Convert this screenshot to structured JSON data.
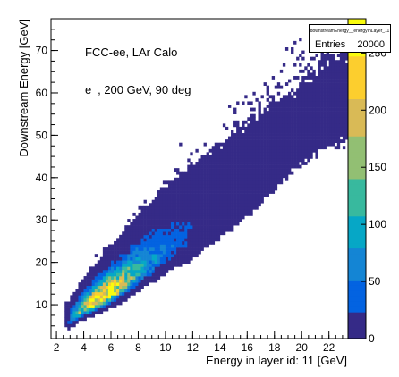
{
  "chart_data": {
    "type": "heatmap",
    "title": "",
    "xlabel": "Energy in layer id: 11 [GeV]",
    "ylabel": "Downstream Energy [GeV]",
    "xlim": [
      1.6,
      23.4
    ],
    "ylim": [
      2,
      77.5
    ],
    "x_ticks": [
      2,
      4,
      6,
      8,
      10,
      12,
      14,
      16,
      18,
      20,
      22
    ],
    "y_ticks": [
      10,
      20,
      30,
      40,
      50,
      60,
      70
    ],
    "color_scale": {
      "min": 0,
      "max": 280,
      "ticks": [
        0,
        50,
        100,
        150,
        200,
        250
      ],
      "palette": [
        "#352a87",
        "#0363e1",
        "#1485d4",
        "#06a7c6",
        "#38b99e",
        "#92bf73",
        "#d9ba56",
        "#fcce2e",
        "#f9fb0e"
      ]
    },
    "distribution_ridge": [
      {
        "x": 2.8,
        "y": 5.5,
        "counts": 25
      },
      {
        "x": 3.5,
        "y": 7.5,
        "counts": 120
      },
      {
        "x": 4.5,
        "y": 9.5,
        "counts": 240
      },
      {
        "x": 5.5,
        "y": 11.5,
        "counts": 275
      },
      {
        "x": 6.5,
        "y": 13.5,
        "counts": 200
      },
      {
        "x": 7.5,
        "y": 16,
        "counts": 130
      },
      {
        "x": 8.5,
        "y": 18.5,
        "counts": 80
      },
      {
        "x": 10,
        "y": 22,
        "counts": 40
      },
      {
        "x": 12,
        "y": 26,
        "counts": 15
      },
      {
        "x": 14,
        "y": 31,
        "counts": 6
      },
      {
        "x": 16,
        "y": 36,
        "counts": 3
      },
      {
        "x": 19,
        "y": 45,
        "counts": 1
      },
      {
        "x": 22,
        "y": 53,
        "counts": 1
      }
    ],
    "annotations": [
      "FCC-ee, LAr Calo",
      "e⁻, 200 GeV, 90 deg"
    ]
  },
  "stats": {
    "name": "downstreamEnergy__energyInLayer_11",
    "entries_label": "Entries",
    "entries_value": "20000"
  }
}
